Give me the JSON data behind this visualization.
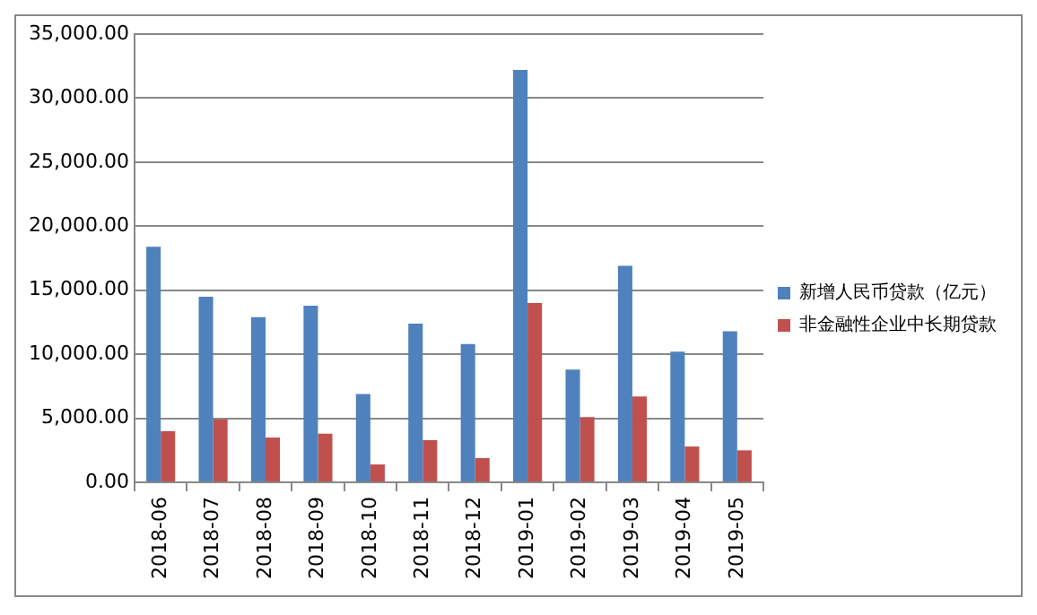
{
  "chart_data": {
    "type": "bar",
    "categories": [
      "2018-06",
      "2018-07",
      "2018-08",
      "2018-09",
      "2018-10",
      "2018-11",
      "2018-12",
      "2019-01",
      "2019-02",
      "2019-03",
      "2019-04",
      "2019-05"
    ],
    "series": [
      {
        "name": "新增人民币贷款（亿元）",
        "color": "#4f81bd",
        "values": [
          18400,
          14500,
          12900,
          13800,
          6900,
          12400,
          10800,
          32200,
          8800,
          16900,
          10200,
          11800
        ]
      },
      {
        "name": "非金融性企业中长期贷款",
        "color": "#c0504d",
        "values": [
          4000,
          4900,
          3500,
          3800,
          1400,
          3300,
          1900,
          14000,
          5100,
          6700,
          2800,
          2500
        ]
      }
    ],
    "ylim": [
      0,
      35000
    ],
    "yticks": [
      {
        "value": 0,
        "label": "0.00"
      },
      {
        "value": 5000,
        "label": "5,000.00"
      },
      {
        "value": 10000,
        "label": "10,000.00"
      },
      {
        "value": 15000,
        "label": "15,000.00"
      },
      {
        "value": 20000,
        "label": "20,000.00"
      },
      {
        "value": 25000,
        "label": "25,000.00"
      },
      {
        "value": 30000,
        "label": "30,000.00"
      },
      {
        "value": 35000,
        "label": "35,000.00"
      }
    ],
    "grid": "y",
    "legend": "right"
  }
}
